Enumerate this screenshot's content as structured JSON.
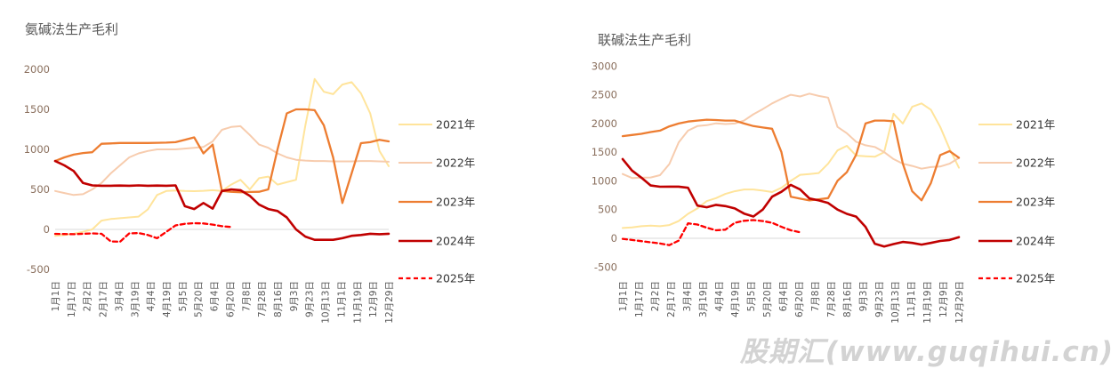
{
  "watermark": "股期汇(www.guqihui.cn)",
  "chart_data": [
    {
      "type": "line",
      "title": "氨碱法生产毛利",
      "ylim": [
        -500,
        2000
      ],
      "y_ticks": [
        2000,
        1500,
        1000,
        500,
        0,
        -500
      ],
      "grid": "zero-line-only",
      "legend_position": "right",
      "x_tick_labels": [
        "1月1日",
        "1月17日",
        "2月2日",
        "2月17日",
        "3月4日",
        "3月19日",
        "4月4日",
        "4月19日",
        "5月5日",
        "5月20日",
        "6月4日",
        "6月20日",
        "7月8日",
        "7月28日",
        "8月16日",
        "9月3日",
        "9月23日",
        "10月13日",
        "11月1日",
        "11月19日",
        "12月9日",
        "12月29日"
      ],
      "x_points_full_year": 37,
      "series": [
        {
          "name": "2021年",
          "color": "#FFE49B",
          "dashed": false,
          "values": [
            -80,
            -70,
            -55,
            -30,
            0,
            110,
            130,
            140,
            150,
            160,
            250,
            430,
            480,
            485,
            480,
            478,
            482,
            490,
            480,
            560,
            620,
            500,
            640,
            660,
            560,
            590,
            620,
            1300,
            1880,
            1720,
            1690,
            1810,
            1840,
            1700,
            1450,
            980,
            790
          ]
        },
        {
          "name": "2022年",
          "color": "#F7CCAE",
          "dashed": false,
          "values": [
            480,
            455,
            430,
            440,
            500,
            580,
            700,
            800,
            900,
            950,
            980,
            1000,
            1000,
            1000,
            1010,
            1020,
            1030,
            1100,
            1244,
            1280,
            1290,
            1180,
            1060,
            1020,
            950,
            900,
            870,
            860,
            855,
            855,
            850,
            850,
            850,
            855,
            855,
            850,
            845
          ]
        },
        {
          "name": "2023年",
          "color": "#ED7D31",
          "dashed": false,
          "values": [
            855,
            900,
            935,
            955,
            965,
            1070,
            1075,
            1080,
            1080,
            1080,
            1080,
            1082,
            1085,
            1090,
            1120,
            1150,
            950,
            1060,
            480,
            470,
            465,
            468,
            470,
            500,
            1000,
            1450,
            1500,
            1500,
            1490,
            1300,
            900,
            330,
            700,
            1078,
            1090,
            1120,
            1100
          ]
        },
        {
          "name": "2024年",
          "color": "#C00000",
          "dashed": false,
          "values": [
            855,
            800,
            730,
            580,
            550,
            545,
            545,
            548,
            545,
            550,
            545,
            548,
            545,
            550,
            290,
            255,
            330,
            260,
            480,
            500,
            490,
            420,
            310,
            255,
            230,
            150,
            0,
            -90,
            -130,
            -130,
            -130,
            -110,
            -80,
            -70,
            -55,
            -60,
            -55
          ]
        },
        {
          "name": "2025年",
          "color": "#FF0000",
          "dashed": true,
          "values": [
            -56,
            -58,
            -60,
            -55,
            -50,
            -55,
            -150,
            -155,
            -50,
            -45,
            -70,
            -110,
            -30,
            50,
            70,
            78,
            75,
            60,
            40,
            30
          ]
        }
      ]
    },
    {
      "type": "line",
      "title": "联碱法生产毛利",
      "ylim": [
        -500,
        3000
      ],
      "y_ticks": [
        3000,
        2500,
        2000,
        1500,
        1000,
        500,
        0,
        -500
      ],
      "grid": "zero-line-only",
      "legend_position": "right",
      "x_tick_labels": [
        "1月1日",
        "1月17日",
        "2月2日",
        "2月17日",
        "3月4日",
        "3月19日",
        "4月4日",
        "4月19日",
        "5月5日",
        "5月20日",
        "6月4日",
        "6月20日",
        "7月8日",
        "7月28日",
        "8月16日",
        "9月3日",
        "9月23日",
        "10月13日",
        "11月1日",
        "11月19日",
        "12月9日",
        "12月29日"
      ],
      "x_points_full_year": 37,
      "series": [
        {
          "name": "2021年",
          "color": "#FFE49B",
          "dashed": false,
          "values": [
            180,
            190,
            210,
            220,
            210,
            230,
            300,
            426,
            520,
            647,
            700,
            773,
            820,
            851,
            850,
            830,
            805,
            880,
            1000,
            1106,
            1120,
            1136,
            1300,
            1530,
            1610,
            1440,
            1430,
            1420,
            1500,
            2170,
            2000,
            2290,
            2350,
            2240,
            1940,
            1560,
            1230
          ]
        },
        {
          "name": "2022年",
          "color": "#F7CCAE",
          "dashed": false,
          "values": [
            1120,
            1050,
            1056,
            1060,
            1100,
            1293,
            1671,
            1876,
            1955,
            1970,
            2003,
            1990,
            2000,
            2050,
            2160,
            2250,
            2350,
            2430,
            2500,
            2470,
            2520,
            2480,
            2450,
            1940,
            1830,
            1680,
            1620,
            1590,
            1500,
            1380,
            1300,
            1260,
            1212,
            1240,
            1250,
            1300,
            1400
          ]
        },
        {
          "name": "2023年",
          "color": "#ED7D31",
          "dashed": false,
          "values": [
            1780,
            1800,
            1820,
            1850,
            1876,
            1950,
            2000,
            2034,
            2050,
            2066,
            2060,
            2050,
            2050,
            2000,
            1955,
            1930,
            1908,
            1500,
            725,
            690,
            660,
            680,
            700,
            1000,
            1150,
            1455,
            2000,
            2050,
            2050,
            2040,
            1300,
            820,
            662,
            962,
            1450,
            1520,
            1403
          ]
        },
        {
          "name": "2024年",
          "color": "#C00000",
          "dashed": false,
          "values": [
            1380,
            1180,
            1056,
            920,
            899,
            900,
            900,
            880,
            570,
            540,
            583,
            560,
            520,
            430,
            380,
            500,
            725,
            810,
            930,
            850,
            694,
            660,
            615,
            500,
            426,
            378,
            200,
            -95,
            -142,
            -100,
            -63,
            -80,
            -110,
            -80,
            -47,
            -30,
            20
          ]
        },
        {
          "name": "2025年",
          "color": "#FF0000",
          "dashed": true,
          "values": [
            -10,
            -30,
            -50,
            -70,
            -90,
            -120,
            -40,
            260,
            240,
            185,
            140,
            150,
            270,
            305,
            318,
            300,
            270,
            200,
            140,
            106
          ]
        }
      ]
    }
  ]
}
